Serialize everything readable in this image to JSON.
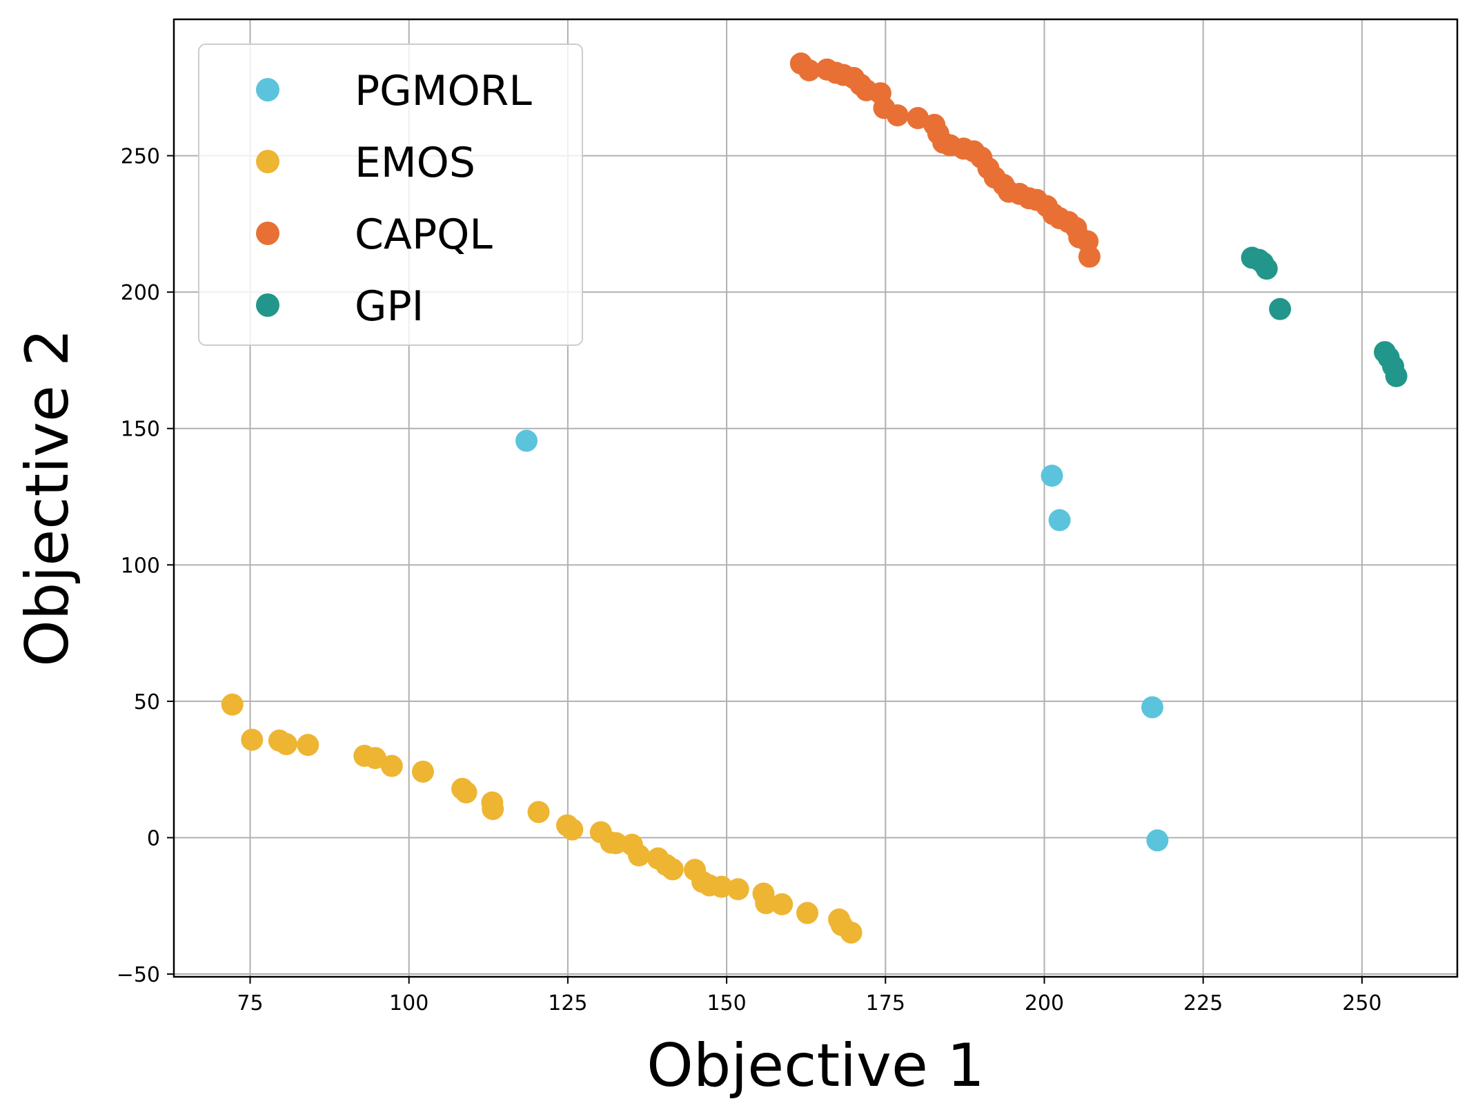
{
  "chart_data": {
    "type": "scatter",
    "xlabel": "Objective 1",
    "ylabel": "Objective 2",
    "xlim": [
      63,
      265
    ],
    "ylim": [
      -51,
      300
    ],
    "xticks": [
      75,
      100,
      125,
      150,
      175,
      200,
      225,
      250
    ],
    "yticks": [
      -50,
      0,
      50,
      100,
      150,
      200,
      250
    ],
    "grid": true,
    "legend_position": "top-left",
    "series": [
      {
        "name": "PGMORL",
        "color": "#5bc4dc",
        "points": [
          [
            118.5,
            145.5
          ],
          [
            201.2,
            132.7
          ],
          [
            202.4,
            116.4
          ],
          [
            217.0,
            47.8
          ],
          [
            217.8,
            -1.0
          ]
        ]
      },
      {
        "name": "EMOS",
        "color": "#eeb533",
        "points": [
          [
            72.2,
            48.8
          ],
          [
            75.3,
            35.9
          ],
          [
            79.6,
            35.6
          ],
          [
            80.7,
            34.3
          ],
          [
            84.1,
            34.0
          ],
          [
            93.0,
            30.0
          ],
          [
            94.7,
            29.2
          ],
          [
            97.3,
            26.3
          ],
          [
            102.2,
            24.2
          ],
          [
            108.4,
            17.9
          ],
          [
            109.0,
            16.6
          ],
          [
            113.1,
            12.9
          ],
          [
            113.2,
            10.5
          ],
          [
            120.4,
            9.4
          ],
          [
            124.9,
            4.5
          ],
          [
            125.7,
            3.0
          ],
          [
            130.2,
            2.0
          ],
          [
            131.8,
            -1.8
          ],
          [
            132.6,
            -2.0
          ],
          [
            135.1,
            -2.6
          ],
          [
            136.2,
            -6.5
          ],
          [
            139.2,
            -7.6
          ],
          [
            140.5,
            -10.0
          ],
          [
            141.5,
            -11.6
          ],
          [
            145.0,
            -11.8
          ],
          [
            146.2,
            -16.2
          ],
          [
            147.3,
            -17.5
          ],
          [
            149.2,
            -18.0
          ],
          [
            151.8,
            -18.9
          ],
          [
            155.8,
            -20.5
          ],
          [
            156.2,
            -24.0
          ],
          [
            158.7,
            -24.4
          ],
          [
            162.7,
            -27.6
          ],
          [
            167.7,
            -30.0
          ],
          [
            168.1,
            -32.0
          ],
          [
            169.6,
            -34.8
          ]
        ]
      },
      {
        "name": "CAPQL",
        "color": "#e87035",
        "points": [
          [
            161.7,
            283.8
          ],
          [
            163.0,
            281.3
          ],
          [
            165.8,
            281.6
          ],
          [
            167.2,
            280.4
          ],
          [
            168.4,
            279.6
          ],
          [
            170.0,
            278.5
          ],
          [
            171.1,
            276.0
          ],
          [
            172.0,
            274.0
          ],
          [
            174.2,
            272.9
          ],
          [
            174.8,
            267.5
          ],
          [
            176.9,
            264.8
          ],
          [
            180.1,
            263.8
          ],
          [
            182.7,
            261.3
          ],
          [
            183.3,
            258.2
          ],
          [
            184.1,
            254.8
          ],
          [
            185.2,
            253.8
          ],
          [
            187.3,
            252.6
          ],
          [
            188.9,
            251.6
          ],
          [
            190.1,
            249.3
          ],
          [
            191.2,
            245.4
          ],
          [
            192.2,
            242.0
          ],
          [
            193.6,
            239.3
          ],
          [
            194.4,
            236.8
          ],
          [
            196.1,
            236.0
          ],
          [
            197.6,
            234.4
          ],
          [
            198.8,
            233.8
          ],
          [
            200.4,
            231.5
          ],
          [
            201.4,
            228.6
          ],
          [
            202.4,
            227.1
          ],
          [
            203.8,
            225.7
          ],
          [
            205.0,
            223.5
          ],
          [
            205.5,
            220.1
          ],
          [
            206.8,
            218.6
          ],
          [
            207.1,
            213.0
          ]
        ]
      },
      {
        "name": "GPI",
        "color": "#22968a",
        "points": [
          [
            232.7,
            212.6
          ],
          [
            233.8,
            211.8
          ],
          [
            234.4,
            210.7
          ],
          [
            235.0,
            208.6
          ],
          [
            237.1,
            193.8
          ],
          [
            253.6,
            178.0
          ],
          [
            254.2,
            176.0
          ],
          [
            254.9,
            172.8
          ],
          [
            255.4,
            169.2
          ]
        ]
      }
    ]
  }
}
